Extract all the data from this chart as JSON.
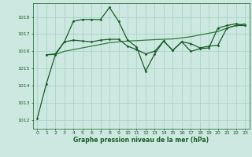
{
  "background_color": "#cce8e0",
  "grid_color": "#aad4c8",
  "line_color_dark": "#1a5c28",
  "line_color_mid": "#2e7d3e",
  "xlabel": "Graphe pression niveau de la mer (hPa)",
  "xlim": [
    -0.5,
    23.5
  ],
  "ylim": [
    1011.5,
    1018.8
  ],
  "yticks": [
    1012,
    1013,
    1014,
    1015,
    1016,
    1017,
    1018
  ],
  "xticks": [
    0,
    1,
    2,
    3,
    4,
    5,
    6,
    7,
    8,
    9,
    10,
    11,
    12,
    13,
    14,
    15,
    16,
    17,
    18,
    19,
    20,
    21,
    22,
    23
  ],
  "series1_x": [
    0,
    1,
    2,
    3,
    4,
    5,
    6,
    7,
    8,
    9,
    10,
    11,
    12,
    13,
    14,
    15,
    16,
    17,
    18,
    19,
    20,
    21,
    22,
    23
  ],
  "series1_y": [
    1012.1,
    1014.1,
    1015.8,
    1016.55,
    1017.75,
    1017.85,
    1017.85,
    1017.85,
    1018.55,
    1017.75,
    1016.65,
    1016.25,
    1014.85,
    1015.85,
    1016.6,
    1016.05,
    1016.55,
    1016.0,
    1016.15,
    1016.2,
    1017.35,
    1017.5,
    1017.6,
    1017.5
  ],
  "series2_x": [
    1,
    2,
    3,
    4,
    5,
    6,
    7,
    8,
    9,
    10,
    11,
    12,
    13,
    14,
    15,
    16,
    17,
    18,
    19,
    20,
    21,
    22,
    23
  ],
  "series2_y": [
    1015.8,
    1015.82,
    1016.0,
    1016.1,
    1016.2,
    1016.3,
    1016.4,
    1016.5,
    1016.55,
    1016.6,
    1016.62,
    1016.65,
    1016.68,
    1016.7,
    1016.72,
    1016.78,
    1016.85,
    1016.95,
    1017.05,
    1017.15,
    1017.35,
    1017.5,
    1017.6
  ],
  "series3_x": [
    1,
    2,
    3,
    4,
    5,
    6,
    7,
    8,
    9,
    10,
    11,
    12,
    13,
    14,
    15,
    16,
    17,
    18,
    19,
    20,
    21,
    22,
    23
  ],
  "series3_y": [
    1015.8,
    1015.85,
    1016.55,
    1016.65,
    1016.6,
    1016.55,
    1016.65,
    1016.7,
    1016.7,
    1016.3,
    1016.1,
    1015.85,
    1016.0,
    1016.6,
    1016.05,
    1016.55,
    1016.45,
    1016.2,
    1016.3,
    1016.35,
    1017.35,
    1017.5,
    1017.5
  ]
}
